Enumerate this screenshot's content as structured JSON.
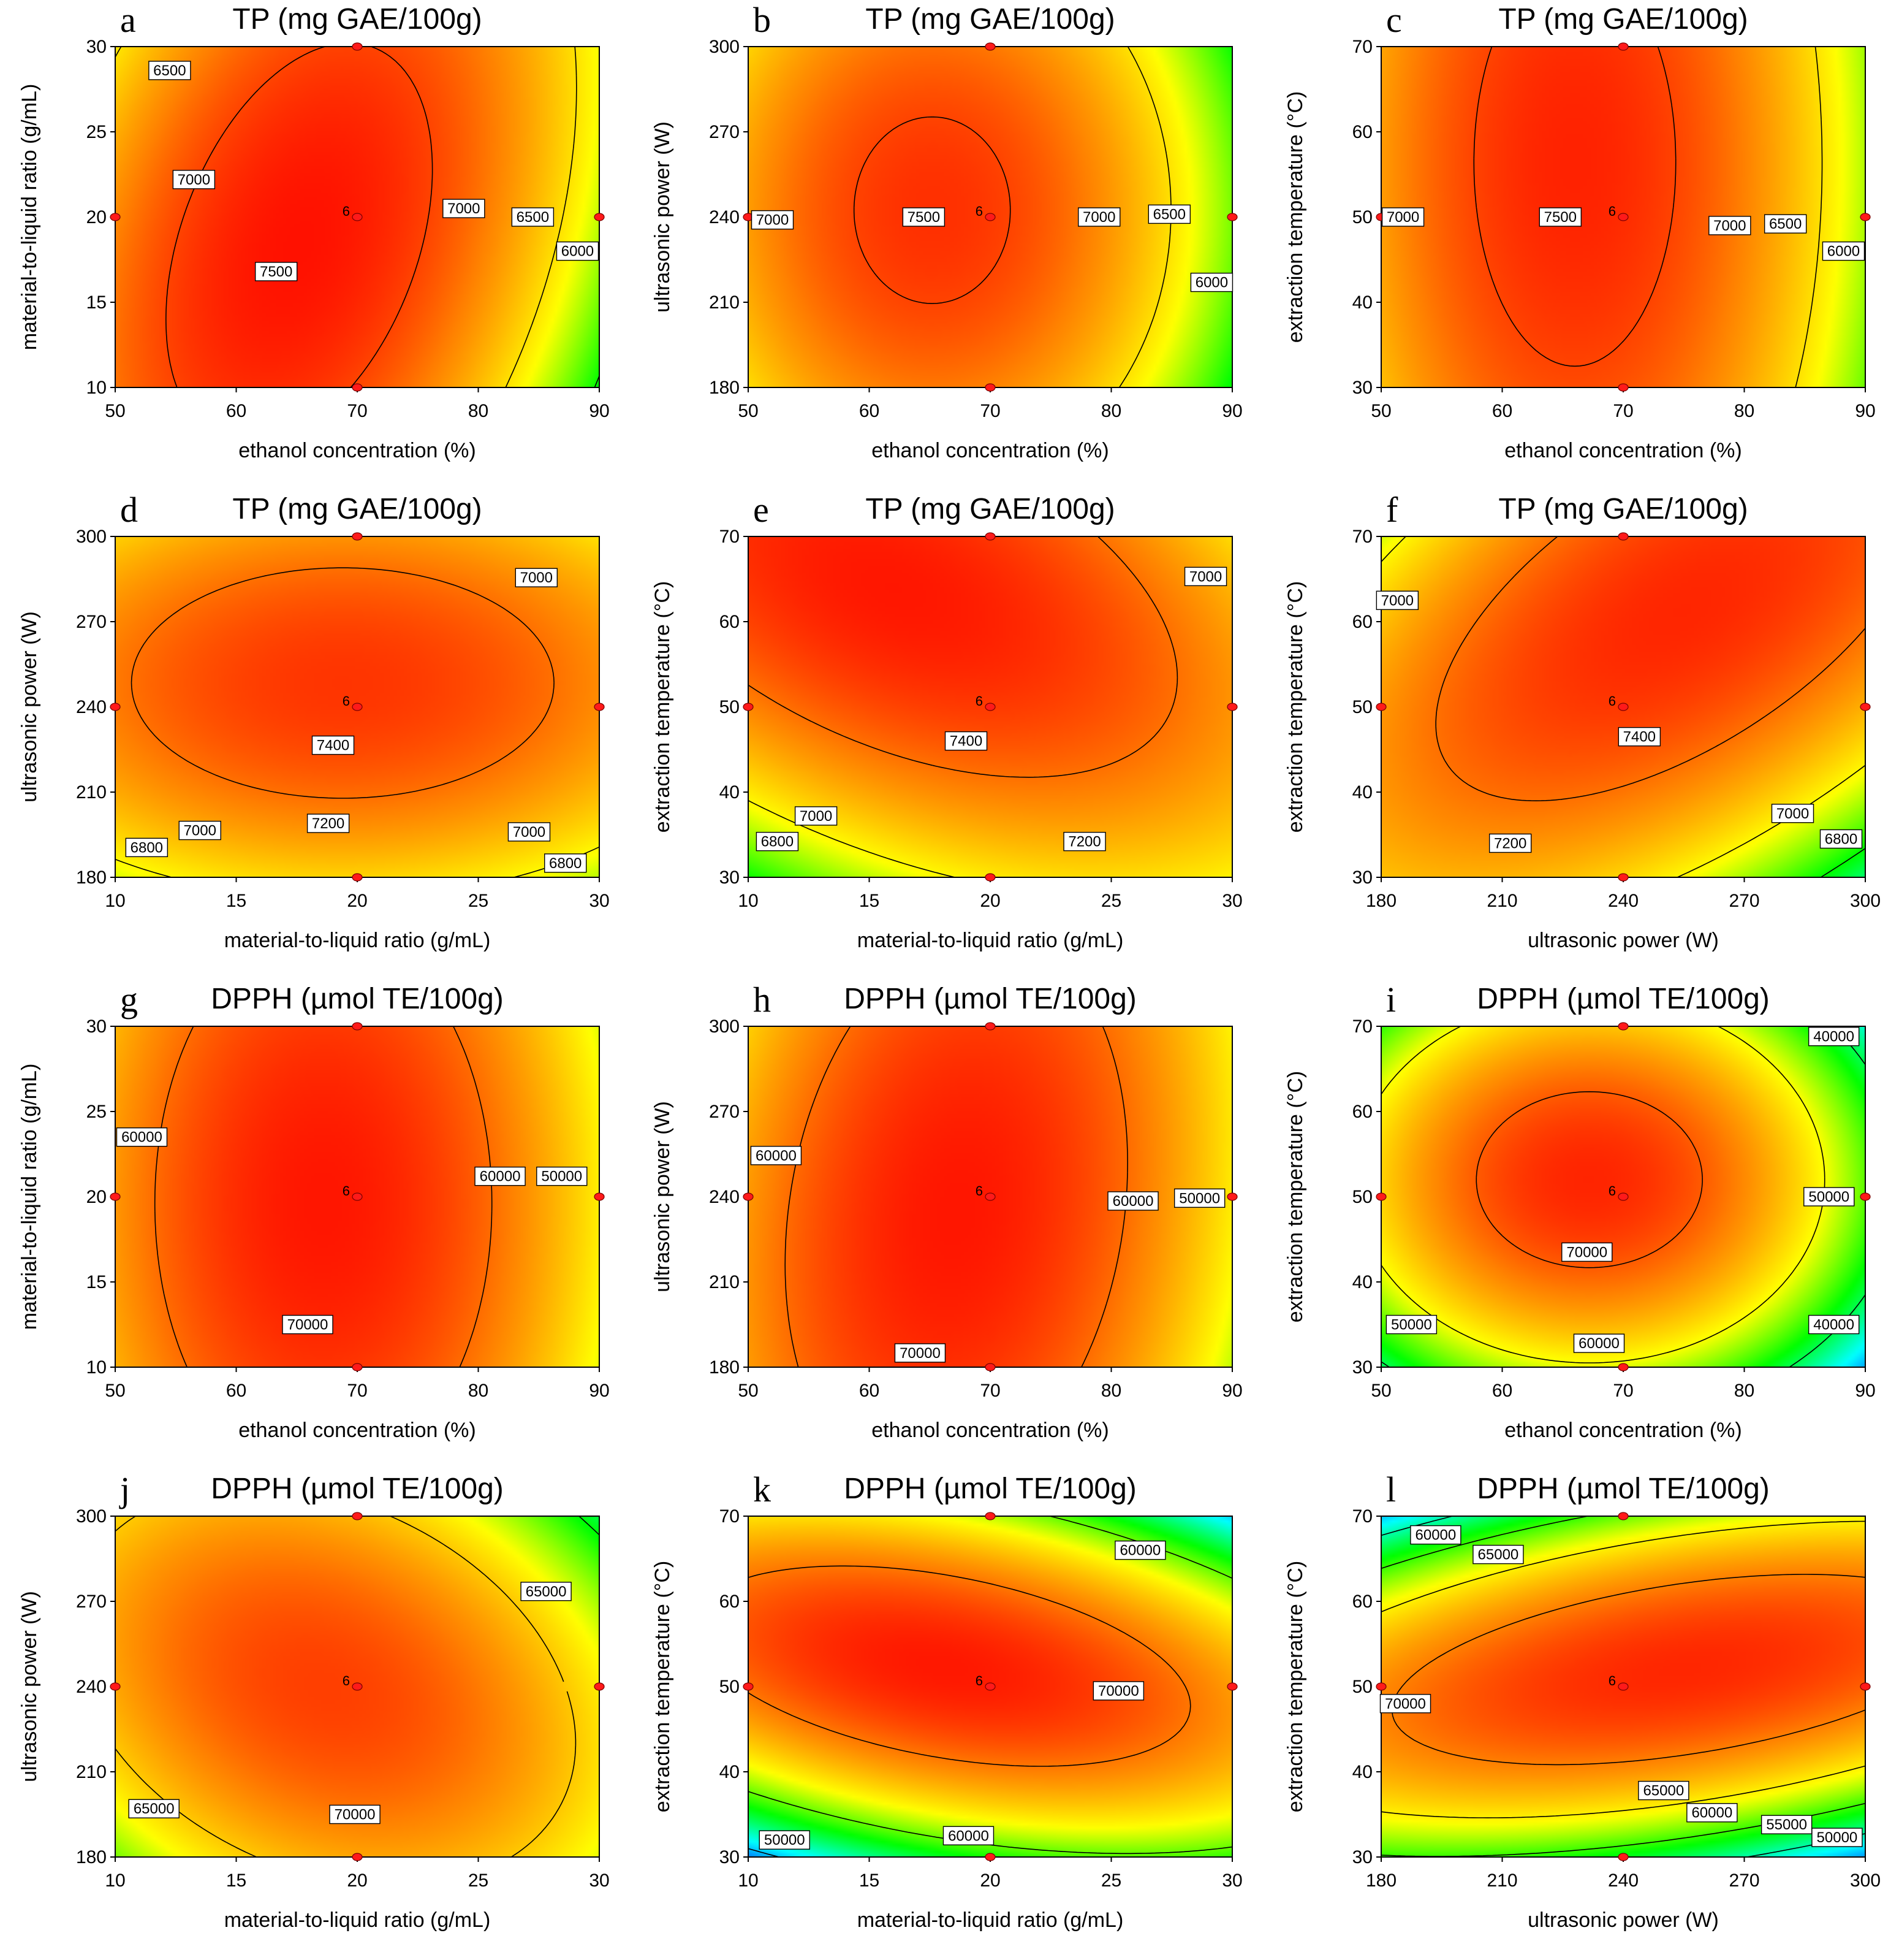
{
  "chart_data": [
    {
      "id": "a",
      "type": "contour",
      "title": "TP (mg GAE/100g)",
      "xlabel": "ethanol concentration (%)",
      "ylabel": "material-to-liquid ratio (g/mL)",
      "xlim": [
        50,
        90
      ],
      "ylim": [
        10,
        30
      ],
      "xticks": [
        "50",
        "60",
        "70",
        "80",
        "90"
      ],
      "yticks": [
        "10",
        "15",
        "20",
        "25",
        "30"
      ],
      "vmin": 5600,
      "vmax": 7700,
      "model": {
        "x0": 0.38,
        "y0": 0.42,
        "peak": 7650,
        "ax": 2300,
        "ay": 500,
        "axy": -800
      },
      "levels": [
        6500,
        7000,
        7500
      ],
      "contour_labels": [
        {
          "text": "6500",
          "x": 54.5,
          "y": 28.6
        },
        {
          "text": "7000",
          "x": 56.5,
          "y": 22.2
        },
        {
          "text": "7500",
          "x": 63.3,
          "y": 16.8
        },
        {
          "text": "7000",
          "x": 78.8,
          "y": 20.5
        },
        {
          "text": "6500",
          "x": 84.5,
          "y": 20.0
        },
        {
          "text": "6000",
          "x": 88.2,
          "y": 18.0
        }
      ],
      "design_points": [
        {
          "x": 50,
          "y": 20
        },
        {
          "x": 90,
          "y": 20
        },
        {
          "x": 70,
          "y": 10
        },
        {
          "x": 70,
          "y": 30
        },
        {
          "x": 70,
          "y": 20
        }
      ],
      "center_label": "6"
    },
    {
      "id": "b",
      "type": "contour",
      "title": "TP (mg GAE/100g)",
      "xlabel": "ethanol concentration (%)",
      "ylabel": "ultrasonic power (W)",
      "xlim": [
        50,
        90
      ],
      "ylim": [
        180,
        300
      ],
      "xticks": [
        "50",
        "60",
        "70",
        "80",
        "90"
      ],
      "yticks": [
        "180",
        "210",
        "240",
        "270",
        "300"
      ],
      "vmin": 5600,
      "vmax": 7700,
      "model": {
        "x0": 0.38,
        "y0": 0.52,
        "peak": 7560,
        "ax": 2300,
        "ay": 800,
        "axy": 0
      },
      "levels": [
        7000,
        7500
      ],
      "contour_labels": [
        {
          "text": "7000",
          "x": 52.0,
          "y": 239.0
        },
        {
          "text": "7500",
          "x": 64.5,
          "y": 240.0
        },
        {
          "text": "7000",
          "x": 79.0,
          "y": 240.0
        },
        {
          "text": "6500",
          "x": 84.8,
          "y": 241.0
        },
        {
          "text": "6000",
          "x": 88.3,
          "y": 217.0
        }
      ],
      "design_points": [
        {
          "x": 50,
          "y": 240
        },
        {
          "x": 90,
          "y": 240
        },
        {
          "x": 70,
          "y": 180
        },
        {
          "x": 70,
          "y": 300
        },
        {
          "x": 70,
          "y": 240
        }
      ],
      "center_label": "6"
    },
    {
      "id": "c",
      "type": "contour",
      "title": "TP (mg GAE/100g)",
      "xlabel": "ethanol concentration (%)",
      "ylabel": "extraction temperature (°C)",
      "xlim": [
        50,
        90
      ],
      "ylim": [
        30,
        70
      ],
      "xticks": [
        "50",
        "60",
        "70",
        "80",
        "90"
      ],
      "yticks": [
        "30",
        "40",
        "50",
        "60",
        "70"
      ],
      "vmin": 5600,
      "vmax": 7700,
      "model": {
        "x0": 0.4,
        "y0": 0.66,
        "peak": 7600,
        "ax": 2300,
        "ay": 280,
        "axy": 0
      },
      "levels": [
        7000,
        7500
      ],
      "contour_labels": [
        {
          "text": "7000",
          "x": 51.8,
          "y": 50.0
        },
        {
          "text": "7500",
          "x": 64.8,
          "y": 50.0
        },
        {
          "text": "7000",
          "x": 78.8,
          "y": 49.0
        },
        {
          "text": "6500",
          "x": 83.4,
          "y": 49.2
        },
        {
          "text": "6000",
          "x": 88.2,
          "y": 46.0
        }
      ],
      "design_points": [
        {
          "x": 50,
          "y": 50
        },
        {
          "x": 90,
          "y": 50
        },
        {
          "x": 70,
          "y": 30
        },
        {
          "x": 70,
          "y": 70
        },
        {
          "x": 70,
          "y": 50
        }
      ],
      "center_label": "6"
    },
    {
      "id": "d",
      "type": "contour",
      "title": "TP (mg GAE/100g)",
      "xlabel": "material-to-liquid ratio (g/mL)",
      "ylabel": "ultrasonic power (W)",
      "xlim": [
        10,
        30
      ],
      "ylim": [
        180,
        300
      ],
      "xticks": [
        "10",
        "15",
        "20",
        "25",
        "30"
      ],
      "yticks": [
        "180",
        "210",
        "240",
        "270",
        "300"
      ],
      "vmin": 6600,
      "vmax": 7550,
      "model": {
        "x0": 0.47,
        "y0": 0.57,
        "peak": 7480,
        "ax": 420,
        "ay": 700,
        "axy": 0
      },
      "levels": [
        6800,
        7000,
        7200,
        7400
      ],
      "contour_labels": [
        {
          "text": "7000",
          "x": 27.4,
          "y": 285.5
        },
        {
          "text": "7400",
          "x": 19.0,
          "y": 226.5
        },
        {
          "text": "7200",
          "x": 18.8,
          "y": 199.0
        },
        {
          "text": "7000",
          "x": 13.5,
          "y": 196.5
        },
        {
          "text": "6800",
          "x": 11.3,
          "y": 190.5
        },
        {
          "text": "7000",
          "x": 27.1,
          "y": 196.0
        },
        {
          "text": "6800",
          "x": 28.6,
          "y": 185.0
        }
      ],
      "design_points": [
        {
          "x": 10,
          "y": 240
        },
        {
          "x": 30,
          "y": 240
        },
        {
          "x": 20,
          "y": 180
        },
        {
          "x": 20,
          "y": 300
        },
        {
          "x": 20,
          "y": 240
        }
      ],
      "center_label": "6"
    },
    {
      "id": "e",
      "type": "contour",
      "title": "TP (mg GAE/100g)",
      "xlabel": "material-to-liquid ratio (g/mL)",
      "ylabel": "extraction temperature (°C)",
      "xlim": [
        10,
        30
      ],
      "ylim": [
        30,
        70
      ],
      "xticks": [
        "10",
        "15",
        "20",
        "25",
        "30"
      ],
      "yticks": [
        "30",
        "40",
        "50",
        "60",
        "70"
      ],
      "vmin": 6600,
      "vmax": 7550,
      "model": {
        "x0": 0.3,
        "y0": 0.85,
        "peak": 7520,
        "ax": 450,
        "ay": 500,
        "axy": 450
      },
      "levels": [
        6800,
        7000,
        7200,
        7400
      ],
      "contour_labels": [
        {
          "text": "7000",
          "x": 28.9,
          "y": 65.3
        },
        {
          "text": "7400",
          "x": 19.0,
          "y": 46.0
        },
        {
          "text": "7000",
          "x": 12.8,
          "y": 37.2
        },
        {
          "text": "6800",
          "x": 11.2,
          "y": 34.2
        },
        {
          "text": "7200",
          "x": 23.9,
          "y": 34.2
        }
      ],
      "design_points": [
        {
          "x": 10,
          "y": 50
        },
        {
          "x": 30,
          "y": 50
        },
        {
          "x": 20,
          "y": 30
        },
        {
          "x": 20,
          "y": 70
        },
        {
          "x": 20,
          "y": 50
        }
      ],
      "center_label": "6"
    },
    {
      "id": "f",
      "type": "contour",
      "title": "TP (mg GAE/100g)",
      "xlabel": "ultrasonic power (W)",
      "ylabel": "extraction temperature (°C)",
      "xlim": [
        180,
        300
      ],
      "ylim": [
        30,
        70
      ],
      "xticks": [
        "180",
        "210",
        "240",
        "270",
        "300"
      ],
      "yticks": [
        "30",
        "40",
        "50",
        "60",
        "70"
      ],
      "vmin": 6600,
      "vmax": 7550,
      "model": {
        "x0": 0.62,
        "y0": 0.78,
        "peak": 7500,
        "ax": 600,
        "ay": 500,
        "axy": -650
      },
      "levels": [
        6800,
        7000,
        7200,
        7400
      ],
      "contour_labels": [
        {
          "text": "7000",
          "x": 184.0,
          "y": 62.5
        },
        {
          "text": "7400",
          "x": 244.0,
          "y": 46.5
        },
        {
          "text": "7200",
          "x": 212.0,
          "y": 34.0
        },
        {
          "text": "7000",
          "x": 282.0,
          "y": 37.5
        },
        {
          "text": "6800",
          "x": 294.0,
          "y": 34.5
        }
      ],
      "design_points": [
        {
          "x": 180,
          "y": 50
        },
        {
          "x": 300,
          "y": 50
        },
        {
          "x": 240,
          "y": 30
        },
        {
          "x": 240,
          "y": 70
        },
        {
          "x": 240,
          "y": 50
        }
      ],
      "center_label": "6"
    },
    {
      "id": "g",
      "type": "contour",
      "title": "DPPH (µmol TE/100g)",
      "xlabel": "ethanol concentration (%)",
      "ylabel": "material-to-liquid ratio (g/mL)",
      "xlim": [
        50,
        90
      ],
      "ylim": [
        10,
        30
      ],
      "xticks": [
        "50",
        "60",
        "70",
        "80",
        "90"
      ],
      "yticks": [
        "10",
        "15",
        "20",
        "25",
        "30"
      ],
      "vmin": 42000,
      "vmax": 75000,
      "model": {
        "x0": 0.43,
        "y0": 0.48,
        "peak": 74000,
        "ax": 33000,
        "ay": 6000,
        "axy": 0
      },
      "levels": [
        60000,
        70000
      ],
      "contour_labels": [
        {
          "text": "60000",
          "x": 52.2,
          "y": 23.5
        },
        {
          "text": "60000",
          "x": 81.8,
          "y": 21.2
        },
        {
          "text": "50000",
          "x": 86.9,
          "y": 21.2
        },
        {
          "text": "70000",
          "x": 65.9,
          "y": 12.5
        }
      ],
      "design_points": [
        {
          "x": 50,
          "y": 20
        },
        {
          "x": 90,
          "y": 20
        },
        {
          "x": 70,
          "y": 10
        },
        {
          "x": 70,
          "y": 30
        },
        {
          "x": 70,
          "y": 20
        }
      ],
      "center_label": "6"
    },
    {
      "id": "h",
      "type": "contour",
      "title": "DPPH (µmol TE/100g)",
      "xlabel": "ethanol concentration (%)",
      "ylabel": "ultrasonic power (W)",
      "xlim": [
        50,
        90
      ],
      "ylim": [
        180,
        300
      ],
      "xticks": [
        "50",
        "60",
        "70",
        "80",
        "90"
      ],
      "yticks": [
        "180",
        "210",
        "240",
        "270",
        "300"
      ],
      "vmin": 42000,
      "vmax": 75000,
      "model": {
        "x0": 0.43,
        "y0": 0.45,
        "peak": 74000,
        "ax": 33000,
        "ay": 6000,
        "axy": -5000
      },
      "levels": [
        60000,
        70000
      ],
      "contour_labels": [
        {
          "text": "60000",
          "x": 52.3,
          "y": 254.5
        },
        {
          "text": "60000",
          "x": 81.8,
          "y": 238.5
        },
        {
          "text": "50000",
          "x": 87.3,
          "y": 239.5
        },
        {
          "text": "70000",
          "x": 64.2,
          "y": 185.0
        }
      ],
      "design_points": [
        {
          "x": 50,
          "y": 240
        },
        {
          "x": 90,
          "y": 240
        },
        {
          "x": 70,
          "y": 180
        },
        {
          "x": 70,
          "y": 300
        },
        {
          "x": 70,
          "y": 240
        }
      ],
      "center_label": "6"
    },
    {
      "id": "i",
      "type": "contour",
      "title": "DPPH (µmol TE/100g)",
      "xlabel": "ethanol concentration (%)",
      "ylabel": "extraction temperature (°C)",
      "xlim": [
        50,
        90
      ],
      "ylim": [
        30,
        70
      ],
      "xticks": [
        "50",
        "60",
        "70",
        "80",
        "90"
      ],
      "yticks": [
        "30",
        "40",
        "50",
        "60",
        "70"
      ],
      "vmin": 36000,
      "vmax": 75000,
      "model": {
        "x0": 0.43,
        "y0": 0.55,
        "peak": 73000,
        "ax": 55000,
        "ay": 45000,
        "axy": 0
      },
      "levels": [
        40000,
        50000,
        60000,
        70000
      ],
      "contour_labels": [
        {
          "text": "40000",
          "x": 87.4,
          "y": 68.8
        },
        {
          "text": "50000",
          "x": 87.0,
          "y": 50.0
        },
        {
          "text": "70000",
          "x": 67.0,
          "y": 43.5
        },
        {
          "text": "60000",
          "x": 68.0,
          "y": 32.8
        },
        {
          "text": "50000",
          "x": 52.5,
          "y": 35.0
        },
        {
          "text": "40000",
          "x": 87.4,
          "y": 35.0
        }
      ],
      "design_points": [
        {
          "x": 50,
          "y": 50
        },
        {
          "x": 90,
          "y": 50
        },
        {
          "x": 70,
          "y": 30
        },
        {
          "x": 70,
          "y": 70
        },
        {
          "x": 70,
          "y": 50
        }
      ],
      "center_label": "6"
    },
    {
      "id": "j",
      "type": "contour",
      "title": "DPPH (µmol TE/100g)",
      "xlabel": "material-to-liquid ratio (g/mL)",
      "ylabel": "ultrasonic power (W)",
      "xlim": [
        10,
        30
      ],
      "ylim": [
        180,
        300
      ],
      "xticks": [
        "10",
        "15",
        "20",
        "25",
        "30"
      ],
      "yticks": [
        "180",
        "210",
        "240",
        "270",
        "300"
      ],
      "vmin": 58000,
      "vmax": 75000,
      "model": {
        "x0": 0.43,
        "y0": 0.5,
        "peak": 73500,
        "ax": 14000,
        "ay": 11000,
        "axy": 7000
      },
      "levels": [
        65000,
        70000
      ],
      "contour_labels": [
        {
          "text": "65000",
          "x": 27.8,
          "y": 273.5
        },
        {
          "text": "65000",
          "x": 11.6,
          "y": 197.0
        },
        {
          "text": "70000",
          "x": 19.9,
          "y": 195.0
        }
      ],
      "design_points": [
        {
          "x": 10,
          "y": 240
        },
        {
          "x": 30,
          "y": 240
        },
        {
          "x": 20,
          "y": 180
        },
        {
          "x": 20,
          "y": 300
        },
        {
          "x": 20,
          "y": 240
        }
      ],
      "center_label": "6"
    },
    {
      "id": "k",
      "type": "contour",
      "title": "DPPH (µmol TE/100g)",
      "xlabel": "material-to-liquid ratio (g/mL)",
      "ylabel": "extraction temperature (°C)",
      "xlim": [
        10,
        30
      ],
      "ylim": [
        30,
        70
      ],
      "xticks": [
        "10",
        "15",
        "20",
        "25",
        "30"
      ],
      "yticks": [
        "30",
        "40",
        "50",
        "60",
        "70"
      ],
      "vmin": 45000,
      "vmax": 75000,
      "model": {
        "x0": 0.4,
        "y0": 0.56,
        "peak": 74000,
        "ax": 18000,
        "ay": 55000,
        "axy": 25000
      },
      "levels": [
        50000,
        60000,
        70000
      ],
      "contour_labels": [
        {
          "text": "60000",
          "x": 26.2,
          "y": 66.0
        },
        {
          "text": "70000",
          "x": 25.3,
          "y": 49.5
        },
        {
          "text": "60000",
          "x": 19.1,
          "y": 32.5
        },
        {
          "text": "50000",
          "x": 11.5,
          "y": 32.0
        }
      ],
      "design_points": [
        {
          "x": 10,
          "y": 50
        },
        {
          "x": 30,
          "y": 50
        },
        {
          "x": 20,
          "y": 30
        },
        {
          "x": 20,
          "y": 70
        },
        {
          "x": 20,
          "y": 50
        }
      ],
      "center_label": "6"
    },
    {
      "id": "l",
      "type": "contour",
      "title": "DPPH (µmol TE/100g)",
      "xlabel": "ultrasonic power (W)",
      "ylabel": "extraction temperature (°C)",
      "xlim": [
        180,
        300
      ],
      "ylim": [
        30,
        70
      ],
      "xticks": [
        "180",
        "210",
        "240",
        "270",
        "300"
      ],
      "yticks": [
        "30",
        "40",
        "50",
        "60",
        "70"
      ],
      "vmin": 47000,
      "vmax": 75000,
      "model": {
        "x0": 0.62,
        "y0": 0.55,
        "peak": 73500,
        "ax": 12000,
        "ay": 55000,
        "axy": -22000
      },
      "levels": [
        55000,
        60000,
        65000,
        70000
      ],
      "contour_labels": [
        {
          "text": "60000",
          "x": 193.5,
          "y": 67.8
        },
        {
          "text": "65000",
          "x": 209.0,
          "y": 65.5
        },
        {
          "text": "70000",
          "x": 186.0,
          "y": 48.0
        },
        {
          "text": "65000",
          "x": 250.0,
          "y": 37.8
        },
        {
          "text": "60000",
          "x": 262.0,
          "y": 35.2
        },
        {
          "text": "55000",
          "x": 280.5,
          "y": 33.8
        },
        {
          "text": "50000",
          "x": 293.0,
          "y": 32.3
        }
      ],
      "design_points": [
        {
          "x": 180,
          "y": 50
        },
        {
          "x": 300,
          "y": 50
        },
        {
          "x": 240,
          "y": 30
        },
        {
          "x": 240,
          "y": 70
        },
        {
          "x": 240,
          "y": 50
        }
      ],
      "center_label": "6"
    }
  ]
}
